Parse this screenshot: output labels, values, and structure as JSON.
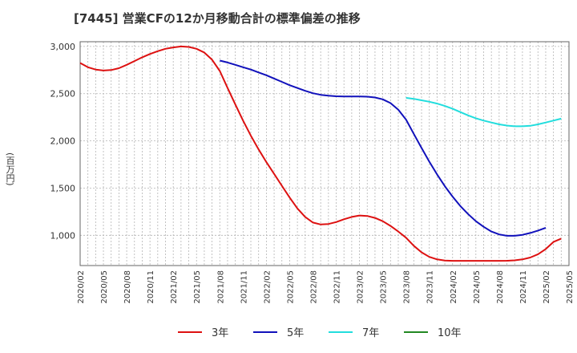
{
  "chart_data": {
    "type": "line",
    "title": "[7445]  営業CFの12か月移動合計の標準偏差の推移",
    "ylabel": "(百万円)",
    "xlabel": "",
    "ylim": [
      680,
      3050
    ],
    "yticks": [
      1000,
      1500,
      2000,
      2500,
      3000
    ],
    "ytick_labels": [
      "1,000",
      "1,500",
      "2,000",
      "2,500",
      "3,000"
    ],
    "x_start": "2020-02",
    "x_end": "2025-05",
    "xtick_labels": [
      "2020/02",
      "2020/05",
      "2020/08",
      "2020/11",
      "2021/02",
      "2021/05",
      "2021/08",
      "2021/11",
      "2022/02",
      "2022/05",
      "2022/08",
      "2022/11",
      "2023/02",
      "2023/05",
      "2023/08",
      "2023/11",
      "2024/02",
      "2024/05",
      "2024/08",
      "2024/11",
      "2025/02",
      "2025/05"
    ],
    "grid": true,
    "legend_position": "bottom",
    "series": [
      {
        "name": "3年",
        "color": "#dd1111",
        "points": [
          [
            "2020-02",
            2825
          ],
          [
            "2020-03",
            2780
          ],
          [
            "2020-04",
            2755
          ],
          [
            "2020-05",
            2745
          ],
          [
            "2020-06",
            2750
          ],
          [
            "2020-07",
            2770
          ],
          [
            "2020-08",
            2805
          ],
          [
            "2020-09",
            2845
          ],
          [
            "2020-10",
            2885
          ],
          [
            "2020-11",
            2920
          ],
          [
            "2020-12",
            2950
          ],
          [
            "2021-01",
            2975
          ],
          [
            "2021-02",
            2990
          ],
          [
            "2021-03",
            3000
          ],
          [
            "2021-04",
            2995
          ],
          [
            "2021-05",
            2975
          ],
          [
            "2021-06",
            2935
          ],
          [
            "2021-07",
            2860
          ],
          [
            "2021-08",
            2740
          ],
          [
            "2021-09",
            2560
          ],
          [
            "2021-10",
            2385
          ],
          [
            "2021-11",
            2215
          ],
          [
            "2021-12",
            2055
          ],
          [
            "2022-01",
            1910
          ],
          [
            "2022-02",
            1775
          ],
          [
            "2022-03",
            1650
          ],
          [
            "2022-04",
            1525
          ],
          [
            "2022-05",
            1400
          ],
          [
            "2022-06",
            1285
          ],
          [
            "2022-07",
            1195
          ],
          [
            "2022-08",
            1135
          ],
          [
            "2022-09",
            1115
          ],
          [
            "2022-10",
            1120
          ],
          [
            "2022-11",
            1140
          ],
          [
            "2022-12",
            1170
          ],
          [
            "2023-01",
            1195
          ],
          [
            "2023-02",
            1210
          ],
          [
            "2023-03",
            1205
          ],
          [
            "2023-04",
            1185
          ],
          [
            "2023-05",
            1150
          ],
          [
            "2023-06",
            1100
          ],
          [
            "2023-07",
            1040
          ],
          [
            "2023-08",
            975
          ],
          [
            "2023-09",
            890
          ],
          [
            "2023-10",
            820
          ],
          [
            "2023-11",
            772
          ],
          [
            "2023-12",
            745
          ],
          [
            "2024-01",
            733
          ],
          [
            "2024-02",
            730
          ],
          [
            "2024-03",
            730
          ],
          [
            "2024-04",
            730
          ],
          [
            "2024-05",
            730
          ],
          [
            "2024-06",
            730
          ],
          [
            "2024-07",
            730
          ],
          [
            "2024-08",
            730
          ],
          [
            "2024-09",
            731
          ],
          [
            "2024-10",
            735
          ],
          [
            "2024-11",
            745
          ],
          [
            "2024-12",
            765
          ],
          [
            "2025-01",
            800
          ],
          [
            "2025-02",
            855
          ],
          [
            "2025-03",
            930
          ],
          [
            "2025-04",
            965
          ]
        ]
      },
      {
        "name": "5年",
        "color": "#1111bb",
        "points": [
          [
            "2021-08",
            2850
          ],
          [
            "2021-09",
            2830
          ],
          [
            "2021-10",
            2805
          ],
          [
            "2021-11",
            2780
          ],
          [
            "2021-12",
            2755
          ],
          [
            "2022-01",
            2725
          ],
          [
            "2022-02",
            2695
          ],
          [
            "2022-03",
            2660
          ],
          [
            "2022-04",
            2625
          ],
          [
            "2022-05",
            2590
          ],
          [
            "2022-06",
            2560
          ],
          [
            "2022-07",
            2530
          ],
          [
            "2022-08",
            2505
          ],
          [
            "2022-09",
            2488
          ],
          [
            "2022-10",
            2478
          ],
          [
            "2022-11",
            2472
          ],
          [
            "2022-12",
            2470
          ],
          [
            "2023-01",
            2470
          ],
          [
            "2023-02",
            2470
          ],
          [
            "2023-03",
            2468
          ],
          [
            "2023-04",
            2460
          ],
          [
            "2023-05",
            2440
          ],
          [
            "2023-06",
            2400
          ],
          [
            "2023-07",
            2330
          ],
          [
            "2023-08",
            2225
          ],
          [
            "2023-09",
            2075
          ],
          [
            "2023-10",
            1925
          ],
          [
            "2023-11",
            1780
          ],
          [
            "2023-12",
            1645
          ],
          [
            "2024-01",
            1520
          ],
          [
            "2024-02",
            1410
          ],
          [
            "2024-03",
            1310
          ],
          [
            "2024-04",
            1225
          ],
          [
            "2024-05",
            1150
          ],
          [
            "2024-06",
            1090
          ],
          [
            "2024-07",
            1040
          ],
          [
            "2024-08",
            1010
          ],
          [
            "2024-09",
            995
          ],
          [
            "2024-10",
            995
          ],
          [
            "2024-11",
            1005
          ],
          [
            "2024-12",
            1025
          ],
          [
            "2025-01",
            1050
          ],
          [
            "2025-02",
            1080
          ]
        ]
      },
      {
        "name": "7年",
        "color": "#22dddd",
        "points": [
          [
            "2023-08",
            2455
          ],
          [
            "2023-09",
            2445
          ],
          [
            "2023-10",
            2430
          ],
          [
            "2023-11",
            2415
          ],
          [
            "2023-12",
            2395
          ],
          [
            "2024-01",
            2370
          ],
          [
            "2024-02",
            2340
          ],
          [
            "2024-03",
            2305
          ],
          [
            "2024-04",
            2270
          ],
          [
            "2024-05",
            2240
          ],
          [
            "2024-06",
            2215
          ],
          [
            "2024-07",
            2195
          ],
          [
            "2024-08",
            2175
          ],
          [
            "2024-09",
            2162
          ],
          [
            "2024-10",
            2155
          ],
          [
            "2024-11",
            2155
          ],
          [
            "2024-12",
            2160
          ],
          [
            "2025-01",
            2175
          ],
          [
            "2025-02",
            2195
          ],
          [
            "2025-03",
            2215
          ],
          [
            "2025-04",
            2235
          ]
        ]
      },
      {
        "name": "10年",
        "color": "#228822",
        "points": []
      }
    ]
  }
}
